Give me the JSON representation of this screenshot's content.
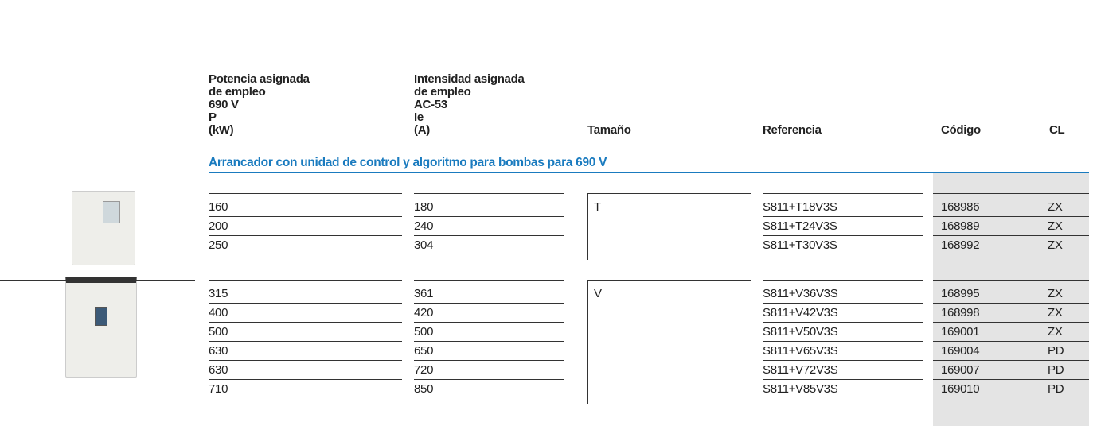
{
  "header": {
    "columns": [
      {
        "lines": [
          "Potencia asignada",
          "de empleo",
          "690 V",
          "P",
          "(kW)"
        ]
      },
      {
        "lines": [
          "Intensidad asignada",
          "de empleo",
          "AC-53",
          "Ie",
          "(A)"
        ]
      },
      {
        "lines": [
          "Tamaño"
        ]
      },
      {
        "lines": [
          "Referencia"
        ]
      },
      {
        "lines": [
          "Código"
        ]
      },
      {
        "lines": [
          "CL"
        ]
      }
    ]
  },
  "section_title": "Arrancador con unidad de control y algoritmo para bombas para 690 V",
  "groups": [
    {
      "size": "T",
      "rows": [
        [
          160,
          180,
          "S811+T18V3S",
          168986,
          "ZX"
        ],
        [
          200,
          240,
          "S811+T24V3S",
          168989,
          "ZX"
        ],
        [
          250,
          304,
          "S811+T30V3S",
          168992,
          "ZX"
        ]
      ]
    },
    {
      "size": "V",
      "rows": [
        [
          315,
          361,
          "S811+V36V3S",
          168995,
          "ZX"
        ],
        [
          400,
          420,
          "S811+V42V3S",
          168998,
          "ZX"
        ],
        [
          500,
          500,
          "S811+V50V3S",
          169001,
          "ZX"
        ],
        [
          630,
          650,
          "S811+V65V3S",
          169004,
          "PD"
        ],
        [
          630,
          720,
          "S811+V72V3S",
          169007,
          "PD"
        ],
        [
          710,
          850,
          "S811+V85V3S",
          169010,
          "PD"
        ]
      ]
    }
  ]
}
